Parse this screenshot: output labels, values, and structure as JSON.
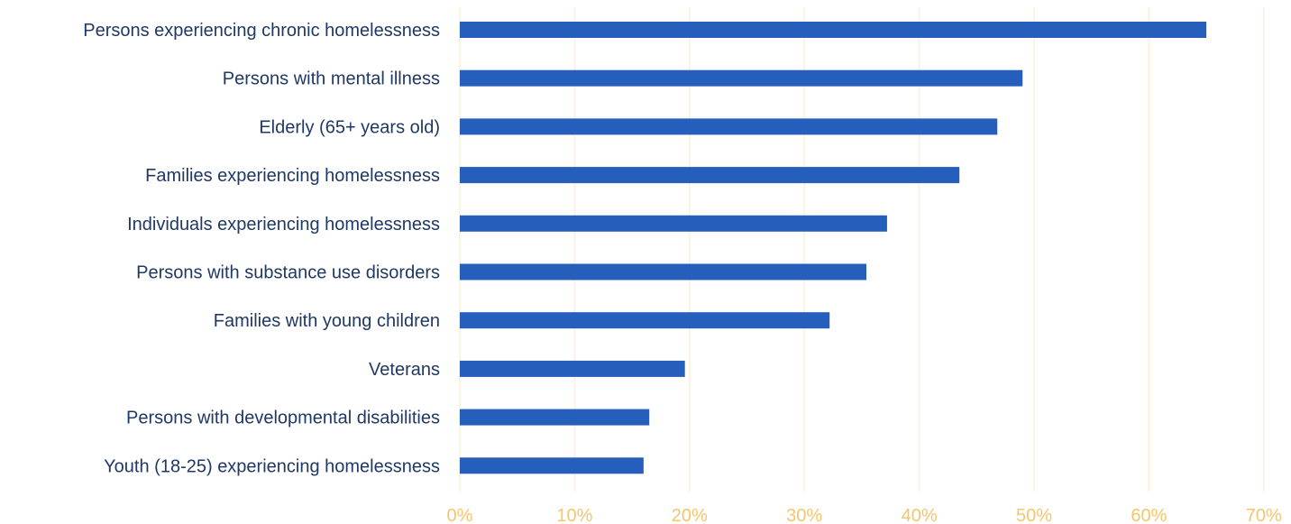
{
  "chart_data": {
    "type": "bar",
    "orientation": "horizontal",
    "categories": [
      "Persons experiencing chronic homelessness",
      "Persons with mental illness",
      "Elderly (65+ years old)",
      "Families experiencing homelessness",
      "Individuals experiencing homelessness",
      "Persons with substance use disorders",
      "Families with young children",
      "Veterans",
      "Persons with developmental disabilities",
      "Youth (18-25) experiencing homelessness"
    ],
    "values": [
      0.65,
      0.49,
      0.468,
      0.435,
      0.372,
      0.354,
      0.322,
      0.196,
      0.165,
      0.16
    ],
    "xlim": [
      0,
      0.7
    ],
    "xticks": [
      0,
      0.1,
      0.2,
      0.3,
      0.4,
      0.5,
      0.6,
      0.7
    ],
    "xtick_labels": [
      "0%",
      "10%",
      "20%",
      "30%",
      "40%",
      "50%",
      "60%",
      "70%"
    ],
    "title": "",
    "xlabel": "",
    "ylabel": "",
    "grid": "vertical",
    "legend": "none",
    "colors": {
      "bar": "#255ebb",
      "gridline": "#fcefd6",
      "tick_label": "#f5c56b",
      "category_label": "#1f3864"
    }
  }
}
